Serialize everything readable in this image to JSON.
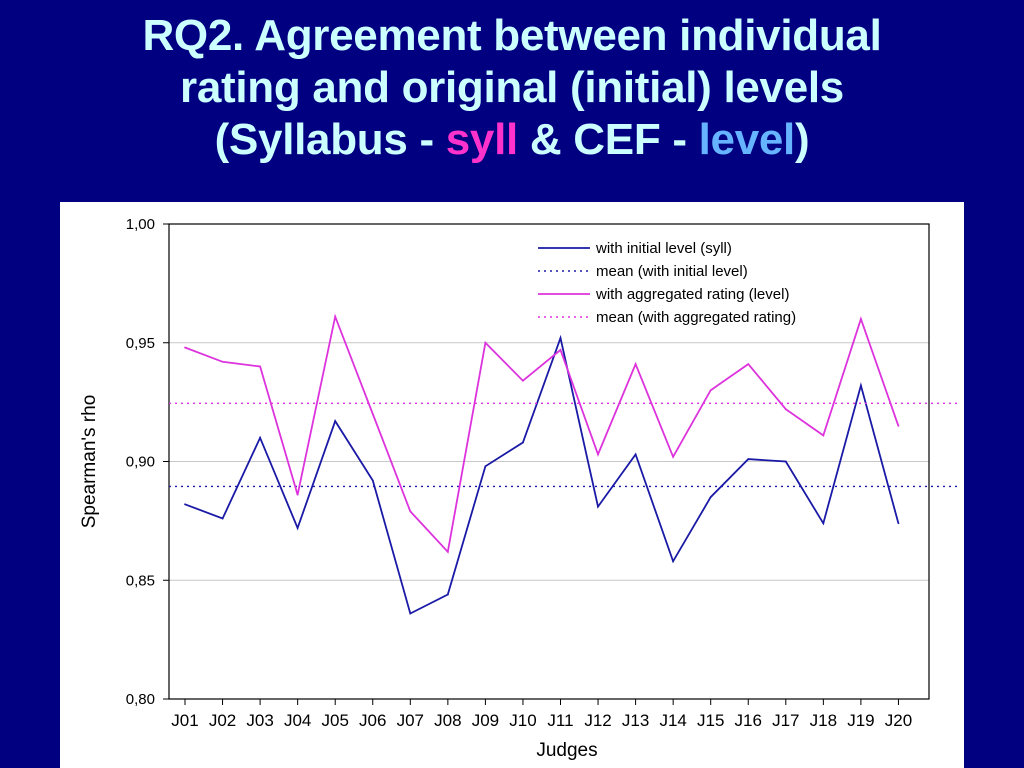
{
  "title": {
    "line1": "RQ2. Agreement between individual",
    "line2": "rating and original (initial) levels",
    "line3_prefix": "(Syllabus - ",
    "line3_syll": "syll",
    "line3_mid": " & CEF - ",
    "line3_level": "level",
    "line3_suffix": ")"
  },
  "colors": {
    "background": "#000080",
    "title_text": "#ccffff",
    "syll_highlight": "#ff33cc",
    "level_highlight": "#66b3ff",
    "series_initial": "#1a1aa6",
    "series_aggregated": "#dd33dd"
  },
  "chart_data": {
    "type": "line",
    "xlabel": "Judges",
    "ylabel": "Spearman's rho",
    "ylim": [
      0.8,
      1.0
    ],
    "yticks": [
      0.8,
      0.85,
      0.9,
      0.95,
      1.0
    ],
    "ytick_labels": [
      "0,80",
      "0,85",
      "0,90",
      "0,95",
      "1,00"
    ],
    "grid": true,
    "legend_position": "top-right",
    "categories": [
      "J01",
      "J02",
      "J03",
      "J04",
      "J05",
      "J06",
      "J07",
      "J08",
      "J09",
      "J10",
      "J11",
      "J12",
      "J13",
      "J14",
      "J15",
      "J16",
      "J17",
      "J18",
      "J19",
      "J20"
    ],
    "series": [
      {
        "name": "with initial level (syll)",
        "style": "solid",
        "color": "#1a1aa6",
        "values": [
          0.882,
          0.876,
          0.91,
          0.872,
          0.917,
          0.892,
          0.836,
          0.844,
          0.898,
          0.908,
          0.952,
          0.881,
          0.903,
          0.858,
          0.885,
          0.901,
          0.9,
          0.874,
          0.932,
          0.874
        ]
      },
      {
        "name": "mean (with initial level)",
        "style": "dotted",
        "color": "#1a1aa6",
        "mean": 0.8895
      },
      {
        "name": "with aggregated rating (level)",
        "style": "solid",
        "color": "#dd33dd",
        "values": [
          0.948,
          0.942,
          0.94,
          0.886,
          0.961,
          0.92,
          0.879,
          0.862,
          0.95,
          0.934,
          0.947,
          0.903,
          0.941,
          0.902,
          0.93,
          0.941,
          0.922,
          0.911,
          0.96,
          0.915
        ]
      },
      {
        "name": "mean (with aggregated rating)",
        "style": "dotted",
        "color": "#dd33dd",
        "mean": 0.9245
      }
    ]
  }
}
